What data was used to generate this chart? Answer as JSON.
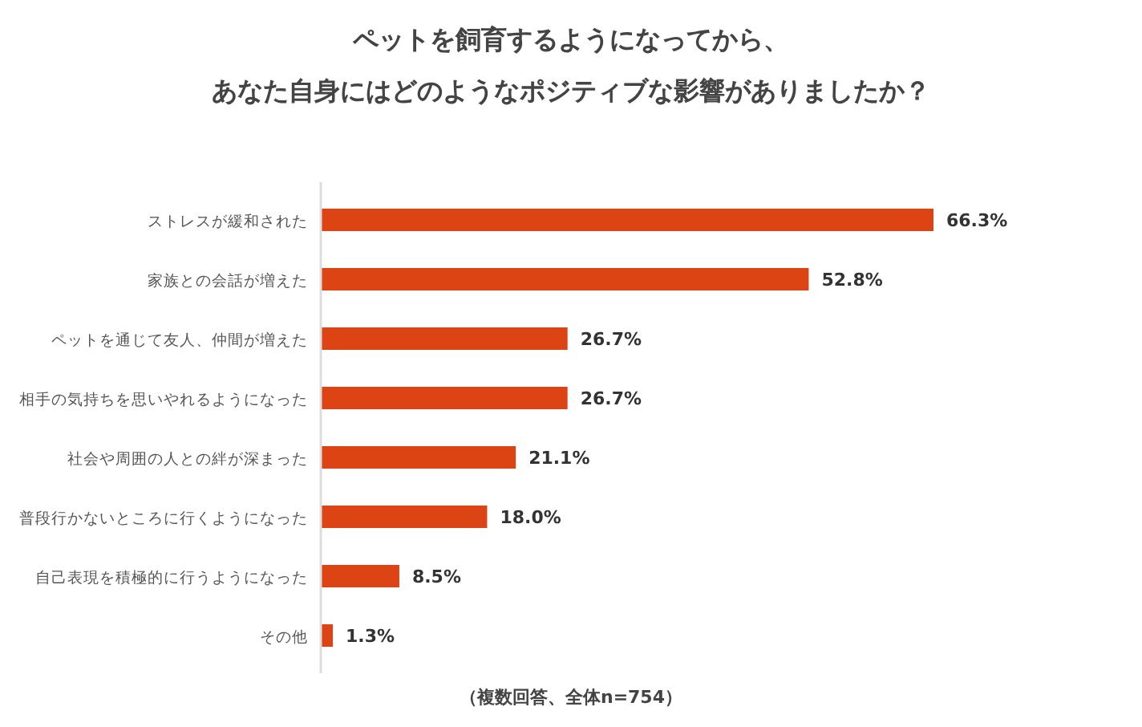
{
  "chart_data": {
    "type": "bar",
    "orientation": "horizontal",
    "title": "ペットを飼育するようになってから、",
    "subtitle": "あなた自身にはどのようなポジティブな影響がありましたか？",
    "categories": [
      "ストレスが緩和された",
      "家族との会話が増えた",
      "ペットを通じて友人、仲間が増えた",
      "相手の気持ちを思いやれるようになった",
      "社会や周囲の人との絆が深まった",
      "普段行かないところに行くようになった",
      "自己表現を積極的に行うようになった",
      "その他"
    ],
    "values": [
      66.3,
      52.8,
      26.7,
      26.7,
      21.1,
      18.0,
      8.5,
      1.3
    ],
    "value_labels": [
      "66.3%",
      "52.8%",
      "26.7%",
      "26.7%",
      "21.1%",
      "18.0%",
      "8.5%",
      "1.3%"
    ],
    "color": "#dc4414",
    "annotations": [
      "（複数回答、全体n=754）"
    ]
  }
}
